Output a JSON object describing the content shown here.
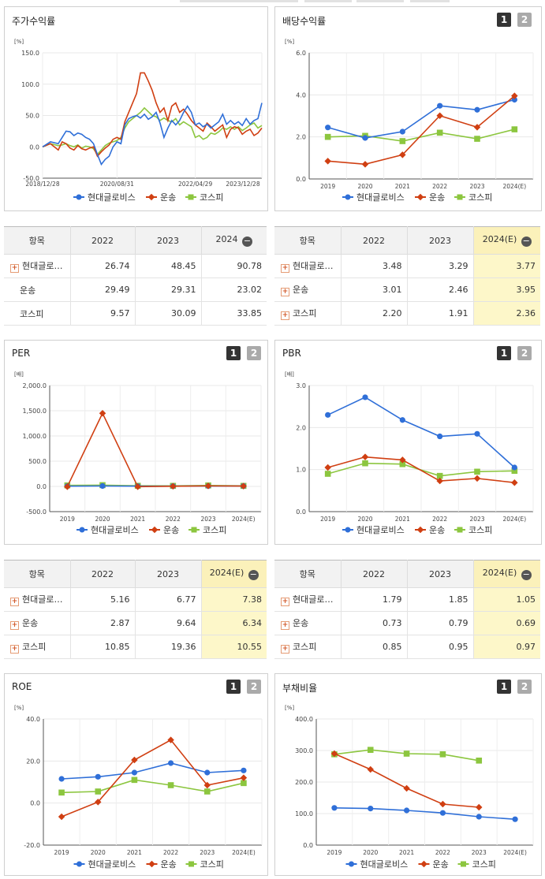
{
  "legend": [
    "현대글로비스",
    "운송",
    "코스피"
  ],
  "colors": {
    "s0": "#2f6fd8",
    "s1": "#d03f12",
    "s2": "#8cc63f"
  },
  "panel_buttons": [
    "1",
    "2"
  ],
  "stock": {
    "title": "주가수익률",
    "chart_data": {
      "type": "line",
      "title": "주가수익률",
      "unit": "[%]",
      "ylim": [
        -50,
        150
      ],
      "yticks": [
        "150.0",
        "100.0",
        "50.0",
        "0.0",
        "-50.0"
      ],
      "xticks": [
        "2018/12/28",
        "2020/08/31",
        "2022/04/29",
        "2023/12/28"
      ],
      "x_start": "2018-12-28",
      "series": [
        {
          "name": "현대글로비스",
          "points": [
            [
              0,
              0
            ],
            [
              4,
              8
            ],
            [
              8,
              5
            ],
            [
              10,
              15
            ],
            [
              12,
              25
            ],
            [
              14,
              24
            ],
            [
              16,
              18
            ],
            [
              18,
              22
            ],
            [
              20,
              20
            ],
            [
              22,
              15
            ],
            [
              24,
              12
            ],
            [
              26,
              5
            ],
            [
              28,
              -12
            ],
            [
              30,
              -28
            ],
            [
              32,
              -20
            ],
            [
              34,
              -15
            ],
            [
              36,
              0
            ],
            [
              38,
              8
            ],
            [
              40,
              5
            ],
            [
              42,
              35
            ],
            [
              44,
              45
            ],
            [
              46,
              48
            ],
            [
              48,
              50
            ],
            [
              50,
              46
            ],
            [
              52,
              52
            ],
            [
              54,
              44
            ],
            [
              56,
              48
            ],
            [
              58,
              55
            ],
            [
              60,
              38
            ],
            [
              62,
              15
            ],
            [
              64,
              30
            ],
            [
              66,
              42
            ],
            [
              68,
              35
            ],
            [
              70,
              42
            ],
            [
              72,
              55
            ],
            [
              74,
              65
            ],
            [
              76,
              55
            ],
            [
              78,
              35
            ],
            [
              80,
              38
            ],
            [
              82,
              32
            ],
            [
              84,
              36
            ],
            [
              86,
              30
            ],
            [
              88,
              35
            ],
            [
              90,
              40
            ],
            [
              92,
              52
            ],
            [
              94,
              36
            ],
            [
              96,
              42
            ],
            [
              98,
              36
            ],
            [
              100,
              40
            ],
            [
              102,
              34
            ],
            [
              104,
              45
            ],
            [
              106,
              36
            ],
            [
              108,
              42
            ],
            [
              110,
              45
            ],
            [
              112,
              70
            ]
          ]
        },
        {
          "name": "운송",
          "points": [
            [
              0,
              0
            ],
            [
              4,
              5
            ],
            [
              8,
              -5
            ],
            [
              10,
              8
            ],
            [
              12,
              5
            ],
            [
              14,
              -2
            ],
            [
              16,
              -5
            ],
            [
              18,
              2
            ],
            [
              20,
              -3
            ],
            [
              22,
              -5
            ],
            [
              24,
              -2
            ],
            [
              26,
              0
            ],
            [
              28,
              -15
            ],
            [
              30,
              -8
            ],
            [
              32,
              -2
            ],
            [
              34,
              3
            ],
            [
              36,
              12
            ],
            [
              38,
              15
            ],
            [
              40,
              12
            ],
            [
              42,
              40
            ],
            [
              44,
              55
            ],
            [
              46,
              70
            ],
            [
              48,
              85
            ],
            [
              50,
              118
            ],
            [
              52,
              118
            ],
            [
              54,
              105
            ],
            [
              56,
              90
            ],
            [
              58,
              70
            ],
            [
              60,
              55
            ],
            [
              62,
              62
            ],
            [
              64,
              42
            ],
            [
              66,
              65
            ],
            [
              68,
              70
            ],
            [
              70,
              55
            ],
            [
              72,
              60
            ],
            [
              74,
              52
            ],
            [
              76,
              42
            ],
            [
              78,
              35
            ],
            [
              80,
              30
            ],
            [
              82,
              25
            ],
            [
              84,
              38
            ],
            [
              86,
              32
            ],
            [
              88,
              25
            ],
            [
              90,
              30
            ],
            [
              92,
              35
            ],
            [
              94,
              15
            ],
            [
              96,
              28
            ],
            [
              98,
              32
            ],
            [
              100,
              30
            ],
            [
              102,
              20
            ],
            [
              104,
              25
            ],
            [
              106,
              28
            ],
            [
              108,
              18
            ],
            [
              110,
              22
            ],
            [
              112,
              30
            ]
          ]
        },
        {
          "name": "코스피",
          "points": [
            [
              0,
              0
            ],
            [
              4,
              5
            ],
            [
              8,
              2
            ],
            [
              10,
              3
            ],
            [
              12,
              5
            ],
            [
              14,
              2
            ],
            [
              16,
              0
            ],
            [
              18,
              3
            ],
            [
              20,
              -2
            ],
            [
              22,
              1
            ],
            [
              24,
              0
            ],
            [
              26,
              -3
            ],
            [
              28,
              -12
            ],
            [
              30,
              -5
            ],
            [
              32,
              2
            ],
            [
              34,
              6
            ],
            [
              36,
              8
            ],
            [
              38,
              10
            ],
            [
              40,
              15
            ],
            [
              42,
              30
            ],
            [
              44,
              40
            ],
            [
              46,
              45
            ],
            [
              48,
              50
            ],
            [
              50,
              55
            ],
            [
              52,
              62
            ],
            [
              54,
              56
            ],
            [
              56,
              50
            ],
            [
              58,
              48
            ],
            [
              60,
              42
            ],
            [
              62,
              46
            ],
            [
              64,
              42
            ],
            [
              66,
              40
            ],
            [
              68,
              45
            ],
            [
              70,
              35
            ],
            [
              72,
              40
            ],
            [
              74,
              36
            ],
            [
              76,
              32
            ],
            [
              78,
              15
            ],
            [
              80,
              18
            ],
            [
              82,
              12
            ],
            [
              84,
              15
            ],
            [
              86,
              22
            ],
            [
              88,
              20
            ],
            [
              90,
              24
            ],
            [
              92,
              30
            ],
            [
              94,
              28
            ],
            [
              96,
              32
            ],
            [
              98,
              28
            ],
            [
              100,
              32
            ],
            [
              102,
              26
            ],
            [
              104,
              30
            ],
            [
              106,
              35
            ],
            [
              108,
              38
            ],
            [
              110,
              30
            ],
            [
              112,
              34
            ]
          ]
        }
      ]
    },
    "table": {
      "headers": [
        "항목",
        "2022",
        "2023",
        "2024"
      ],
      "rows": [
        {
          "name": "현대글로…",
          "plus": true,
          "values": [
            "26.74",
            "48.45",
            "90.78"
          ]
        },
        {
          "name": "운송",
          "plus": false,
          "values": [
            "29.49",
            "29.31",
            "23.02"
          ]
        },
        {
          "name": "코스피",
          "plus": false,
          "values": [
            "9.57",
            "30.09",
            "33.85"
          ]
        }
      ]
    }
  },
  "dividend": {
    "title": "배당수익률",
    "chart_data": {
      "type": "line",
      "title": "배당수익률",
      "unit": "[%]",
      "ylim": [
        0,
        6
      ],
      "yticks": [
        "6.0",
        "4.0",
        "2.0",
        "0.0"
      ],
      "categories": [
        "2019",
        "2020",
        "2021",
        "2022",
        "2023",
        "2024(E)"
      ],
      "series": [
        {
          "name": "현대글로비스",
          "values": [
            2.45,
            1.95,
            2.25,
            3.48,
            3.29,
            3.77
          ]
        },
        {
          "name": "운송",
          "values": [
            0.85,
            0.7,
            1.15,
            3.01,
            2.46,
            3.95
          ]
        },
        {
          "name": "코스피",
          "values": [
            2.0,
            2.05,
            1.8,
            2.2,
            1.91,
            2.36
          ]
        }
      ]
    },
    "table": {
      "headers": [
        "항목",
        "2022",
        "2023",
        "2024(E)"
      ],
      "rows": [
        {
          "name": "현대글로…",
          "plus": true,
          "values": [
            "3.48",
            "3.29",
            "3.77"
          ]
        },
        {
          "name": "운송",
          "plus": true,
          "values": [
            "3.01",
            "2.46",
            "3.95"
          ]
        },
        {
          "name": "코스피",
          "plus": true,
          "values": [
            "2.20",
            "1.91",
            "2.36"
          ]
        }
      ]
    }
  },
  "per": {
    "title": "PER",
    "chart_data": {
      "type": "line",
      "title": "PER",
      "unit": "[배]",
      "ylim": [
        -500,
        2000
      ],
      "yticks": [
        "2,000.0",
        "1,500.0",
        "1,000.0",
        "500.0",
        "0.0",
        "-500.0"
      ],
      "categories": [
        "2019",
        "2020",
        "2021",
        "2022",
        "2023",
        "2024(E)"
      ],
      "series": [
        {
          "name": "현대글로비스",
          "values": [
            5,
            8,
            5,
            5.16,
            6.77,
            7.38
          ]
        },
        {
          "name": "운송",
          "values": [
            -5,
            1450,
            -5,
            2.87,
            9.64,
            6.34
          ]
        },
        {
          "name": "코스피",
          "values": [
            20,
            25,
            12,
            10.85,
            19.36,
            10.55
          ]
        }
      ]
    },
    "table": {
      "headers": [
        "항목",
        "2022",
        "2023",
        "2024(E)"
      ],
      "rows": [
        {
          "name": "현대글로…",
          "plus": true,
          "values": [
            "5.16",
            "6.77",
            "7.38"
          ]
        },
        {
          "name": "운송",
          "plus": true,
          "values": [
            "2.87",
            "9.64",
            "6.34"
          ]
        },
        {
          "name": "코스피",
          "plus": true,
          "values": [
            "10.85",
            "19.36",
            "10.55"
          ]
        }
      ]
    }
  },
  "pbr": {
    "title": "PBR",
    "chart_data": {
      "type": "line",
      "title": "PBR",
      "unit": "[배]",
      "ylim": [
        0,
        3
      ],
      "yticks": [
        "3.0",
        "2.0",
        "1.0",
        "0.0"
      ],
      "categories": [
        "2019",
        "2020",
        "2021",
        "2022",
        "2023",
        "2024(E)"
      ],
      "series": [
        {
          "name": "현대글로비스",
          "values": [
            2.3,
            2.72,
            2.18,
            1.79,
            1.85,
            1.05
          ]
        },
        {
          "name": "운송",
          "values": [
            1.05,
            1.3,
            1.23,
            0.73,
            0.79,
            0.69
          ]
        },
        {
          "name": "코스피",
          "values": [
            0.9,
            1.15,
            1.13,
            0.85,
            0.95,
            0.97
          ]
        }
      ]
    },
    "table": {
      "headers": [
        "항목",
        "2022",
        "2023",
        "2024(E)"
      ],
      "rows": [
        {
          "name": "현대글로…",
          "plus": true,
          "values": [
            "1.79",
            "1.85",
            "1.05"
          ]
        },
        {
          "name": "운송",
          "plus": true,
          "values": [
            "0.73",
            "0.79",
            "0.69"
          ]
        },
        {
          "name": "코스피",
          "plus": true,
          "values": [
            "0.85",
            "0.95",
            "0.97"
          ]
        }
      ]
    }
  },
  "roe": {
    "title": "ROE",
    "chart_data": {
      "type": "line",
      "title": "ROE",
      "unit": "[%]",
      "ylim": [
        -20,
        40
      ],
      "yticks": [
        "40.0",
        "20.0",
        "0.0",
        "-20.0"
      ],
      "categories": [
        "2019",
        "2020",
        "2021",
        "2022",
        "2023",
        "2024(E)"
      ],
      "series": [
        {
          "name": "현대글로비스",
          "values": [
            11.5,
            12.5,
            14.5,
            19,
            14.5,
            15.5
          ]
        },
        {
          "name": "운송",
          "values": [
            -6.5,
            0.5,
            20.5,
            30,
            8.5,
            12
          ]
        },
        {
          "name": "코스피",
          "values": [
            5,
            5.5,
            11,
            8.5,
            5.5,
            9.5
          ]
        }
      ]
    }
  },
  "debt": {
    "title": "부채비율",
    "chart_data": {
      "type": "line",
      "title": "부채비율",
      "unit": "[%]",
      "ylim": [
        0,
        400
      ],
      "yticks": [
        "400.0",
        "300.0",
        "200.0",
        "100.0",
        "0.0"
      ],
      "categories": [
        "2019",
        "2020",
        "2021",
        "2022",
        "2023",
        "2024(E)"
      ],
      "series": [
        {
          "name": "현대글로비스",
          "values": [
            118,
            116,
            110,
            102,
            90,
            82
          ]
        },
        {
          "name": "운송",
          "values": [
            290,
            240,
            180,
            130,
            120,
            null
          ]
        },
        {
          "name": "코스피",
          "values": [
            288,
            302,
            290,
            288,
            268,
            null
          ]
        }
      ]
    }
  }
}
